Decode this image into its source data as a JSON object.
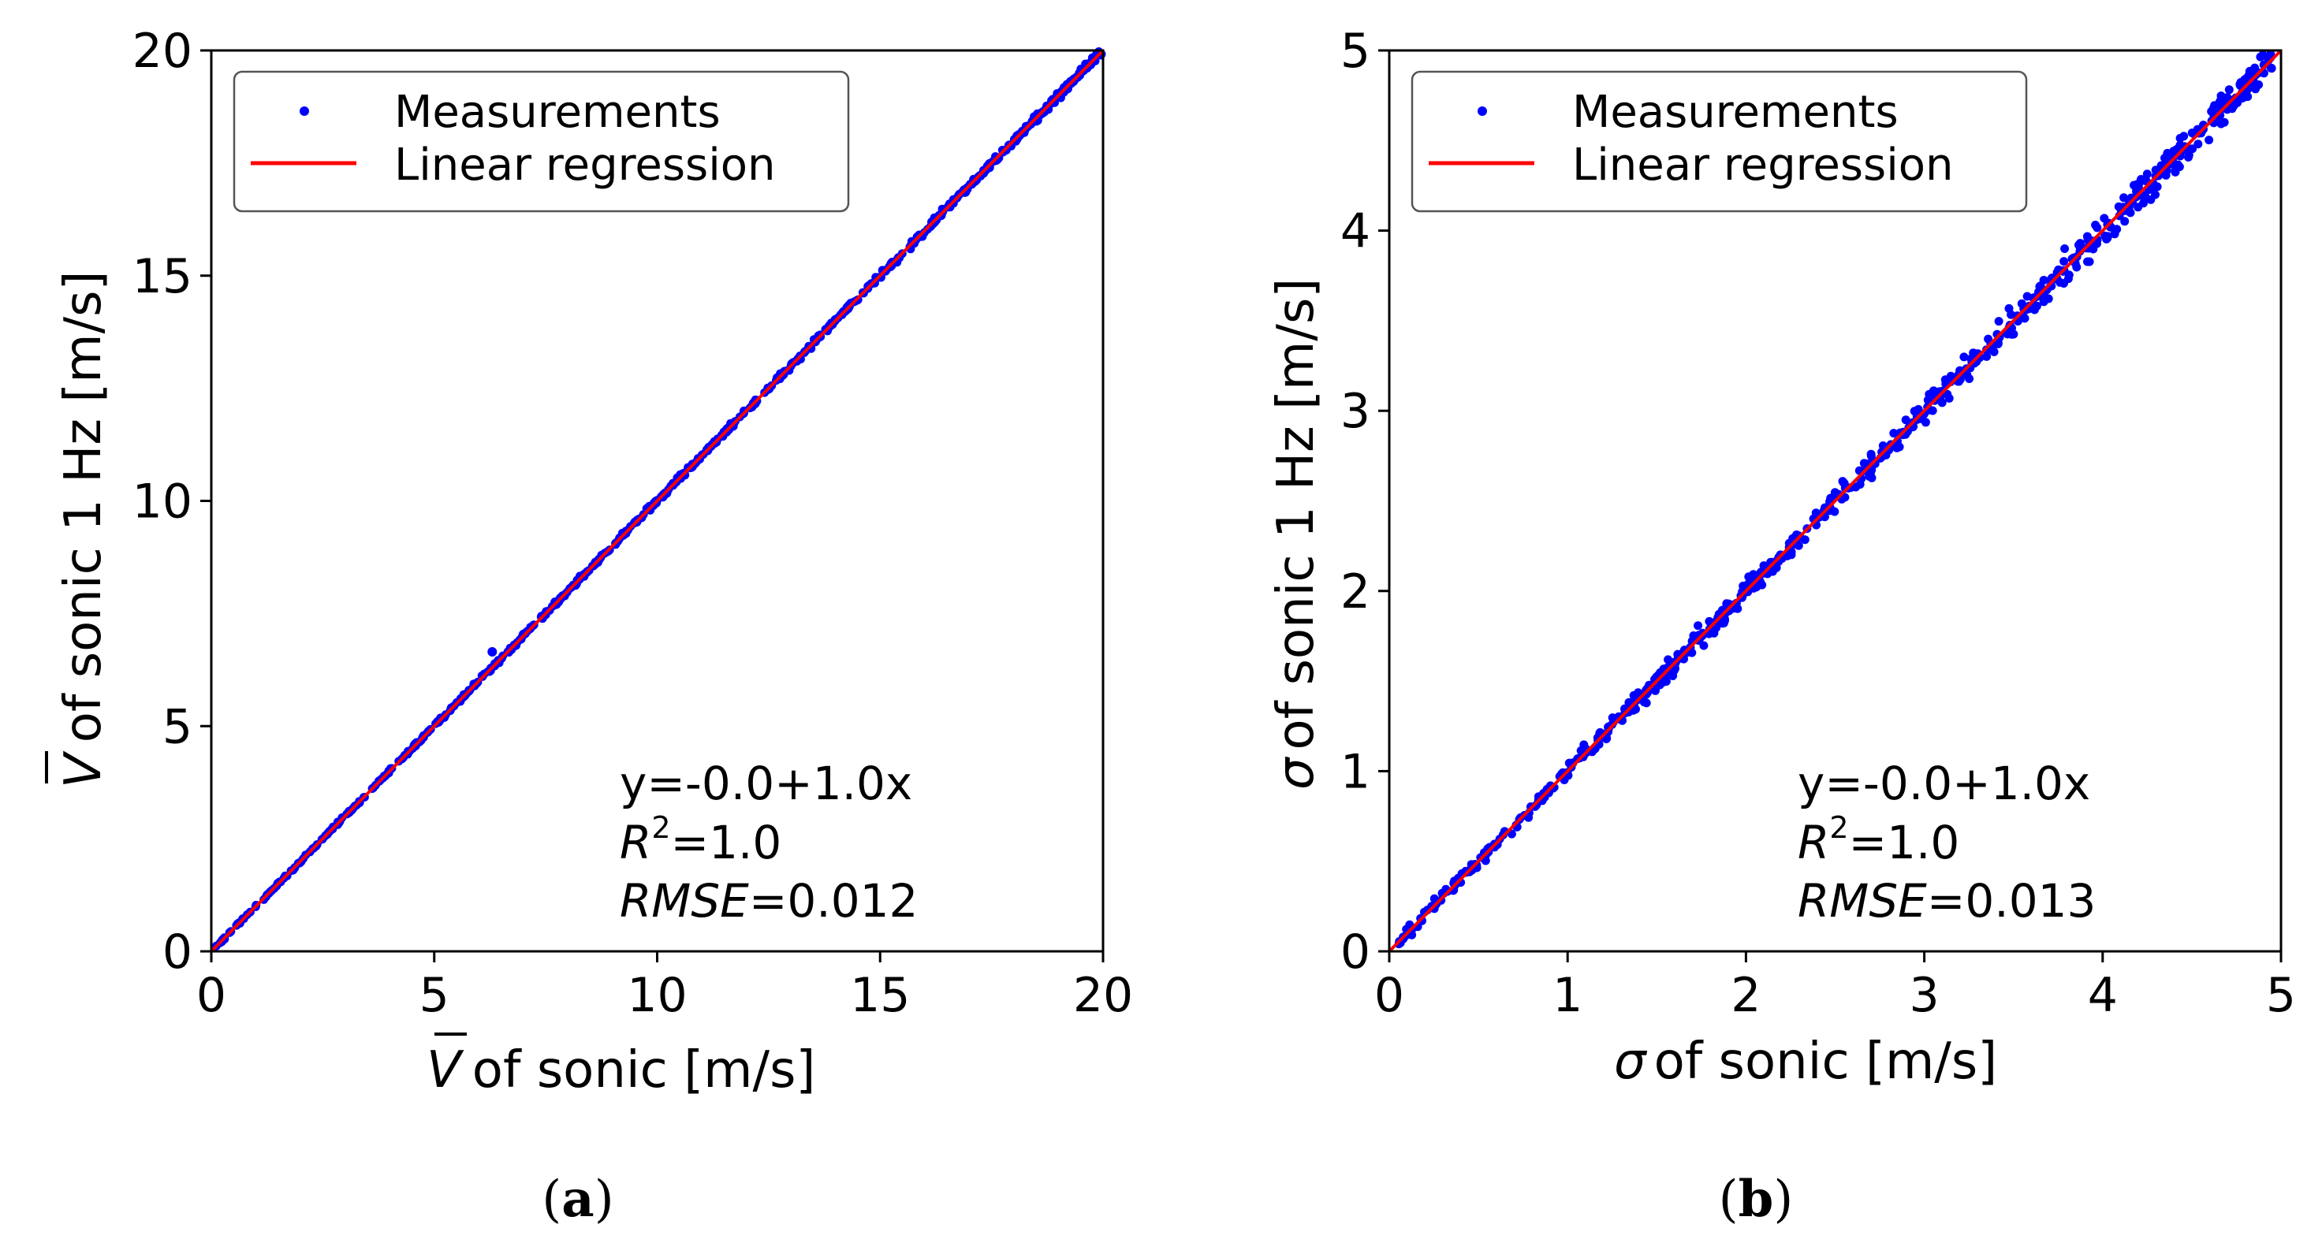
{
  "colors": {
    "points": "#0000ff",
    "line": "#ff0000",
    "axis": "#000000"
  },
  "chart_data": [
    {
      "type": "scatter",
      "panel": "a",
      "caption": {
        "open": "(",
        "letter": "a",
        "close": ")"
      },
      "xlabel": {
        "symbol": "V",
        "text": "of  sonic [m/s]"
      },
      "ylabel": {
        "symbol": "V",
        "text": "of  sonic 1 Hz [m/s]"
      },
      "xlim": [
        0,
        20
      ],
      "ylim": [
        0,
        20
      ],
      "xticks": [
        "0",
        "5",
        "10",
        "15",
        "20"
      ],
      "yticks": [
        "0",
        "5",
        "10",
        "15",
        "20"
      ],
      "legend": {
        "placement": "top-left",
        "entries": [
          "Measurements",
          "Linear regression"
        ]
      },
      "series": [
        {
          "name": "Measurements",
          "kind": "points",
          "x_range": [
            0.1,
            20
          ],
          "slope": 1.0,
          "intercept": 0.0,
          "noise": 0.03
        },
        {
          "name": "Linear regression",
          "kind": "line",
          "x": [
            0,
            20
          ],
          "y": [
            0,
            20
          ]
        }
      ],
      "outliers": [
        [
          6.3,
          6.65
        ]
      ],
      "annotations": {
        "equation": "y=-0.0+1.0x",
        "r2_label": "R",
        "r2_sup": "2",
        "r2_value": "=1.0",
        "rmse_label": "RMSE",
        "rmse_value": "=0.012"
      }
    },
    {
      "type": "scatter",
      "panel": "b",
      "caption": {
        "open": "(",
        "letter": "b",
        "close": ")"
      },
      "xlabel": {
        "symbol": "σ",
        "text": "of  sonic [m/s]"
      },
      "ylabel": {
        "symbol": "σ",
        "text": "of  sonic 1 Hz [m/s]"
      },
      "xlim": [
        0,
        5
      ],
      "ylim": [
        0,
        5
      ],
      "xticks": [
        "0",
        "1",
        "2",
        "3",
        "4",
        "5"
      ],
      "yticks": [
        "0",
        "1",
        "2",
        "3",
        "4",
        "5"
      ],
      "legend": {
        "placement": "top-left",
        "entries": [
          "Measurements",
          "Linear regression"
        ]
      },
      "series": [
        {
          "name": "Measurements",
          "kind": "points",
          "x_range": [
            0.02,
            4.95
          ],
          "slope": 1.0,
          "intercept": 0.0,
          "noise": 0.035
        },
        {
          "name": "Linear regression",
          "kind": "line",
          "x": [
            0,
            5
          ],
          "y": [
            0,
            5
          ]
        }
      ],
      "outliers": [],
      "annotations": {
        "equation": "y=-0.0+1.0x",
        "r2_label": "R",
        "r2_sup": "2",
        "r2_value": "=1.0",
        "rmse_label": "RMSE",
        "rmse_value": "=0.013"
      }
    }
  ]
}
